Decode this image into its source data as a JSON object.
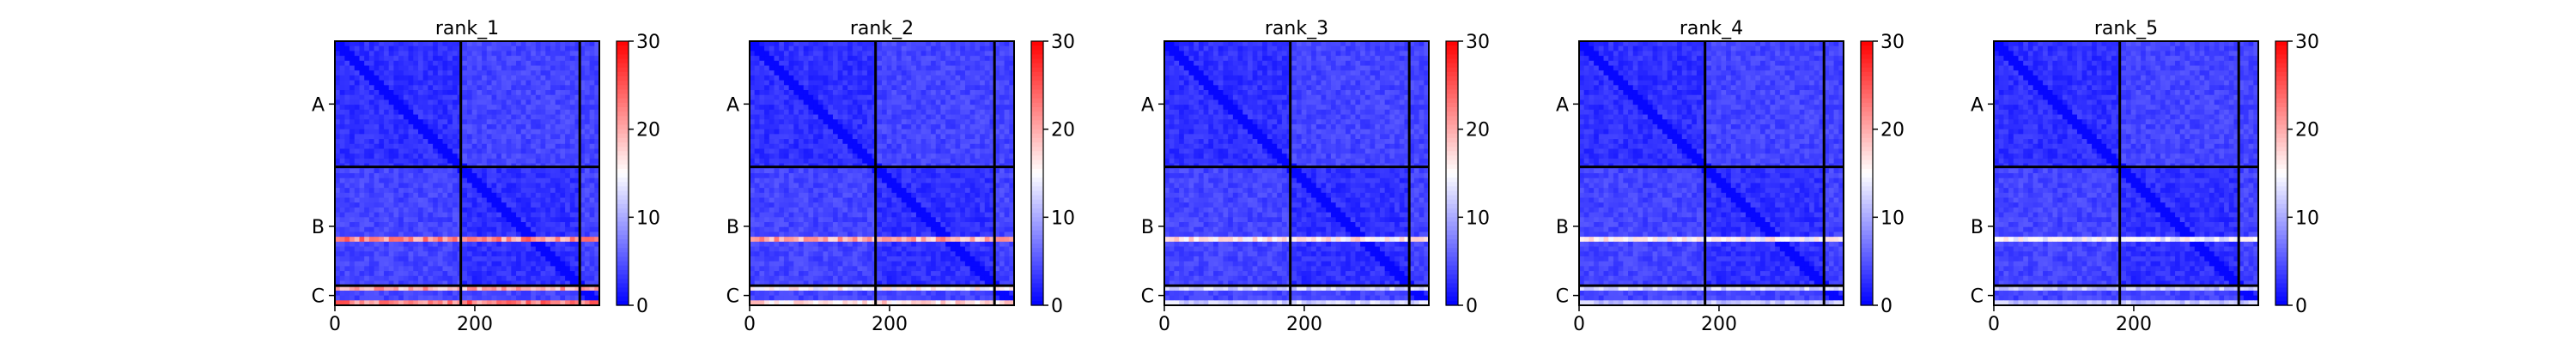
{
  "chart_data": [
    {
      "type": "heatmap",
      "title": "rank_1",
      "xticks": [
        0,
        200
      ],
      "xlim": [
        0,
        378
      ],
      "ylim": [
        0,
        378
      ],
      "chain_labels": [
        "A",
        "B",
        "C"
      ],
      "chain_boundaries": [
        180,
        350
      ],
      "colorbar": {
        "min": 0,
        "max": 30,
        "ticks": [
          0,
          10,
          20,
          30
        ],
        "colormap": [
          "#0000ff",
          "#ffffff",
          "#ff0000"
        ]
      },
      "hot_rows": [
        {
          "center": 282,
          "width": 3,
          "value": 24
        },
        {
          "center": 356,
          "width": 3,
          "value": 22
        },
        {
          "center": 372,
          "width": 3,
          "value": 25
        }
      ]
    },
    {
      "type": "heatmap",
      "title": "rank_2",
      "xticks": [
        0,
        200
      ],
      "xlim": [
        0,
        378
      ],
      "ylim": [
        0,
        378
      ],
      "chain_labels": [
        "A",
        "B",
        "C"
      ],
      "chain_boundaries": [
        180,
        350
      ],
      "colorbar": {
        "min": 0,
        "max": 30,
        "ticks": [
          0,
          10,
          20,
          30
        ],
        "colormap": [
          "#0000ff",
          "#ffffff",
          "#ff0000"
        ]
      },
      "hot_rows": [
        {
          "center": 282,
          "width": 3,
          "value": 22
        },
        {
          "center": 356,
          "width": 3,
          "value": 17
        },
        {
          "center": 372,
          "width": 3,
          "value": 19
        }
      ]
    },
    {
      "type": "heatmap",
      "title": "rank_3",
      "xticks": [
        0,
        200
      ],
      "xlim": [
        0,
        378
      ],
      "ylim": [
        0,
        378
      ],
      "chain_labels": [
        "A",
        "B",
        "C"
      ],
      "chain_boundaries": [
        180,
        350
      ],
      "colorbar": {
        "min": 0,
        "max": 30,
        "ticks": [
          0,
          10,
          20,
          30
        ],
        "colormap": [
          "#0000ff",
          "#ffffff",
          "#ff0000"
        ]
      },
      "hot_rows": [
        {
          "center": 282,
          "width": 3,
          "value": 18
        },
        {
          "center": 356,
          "width": 3,
          "value": 14
        },
        {
          "center": 372,
          "width": 3,
          "value": 14
        }
      ]
    },
    {
      "type": "heatmap",
      "title": "rank_4",
      "xticks": [
        0,
        200
      ],
      "xlim": [
        0,
        378
      ],
      "ylim": [
        0,
        378
      ],
      "chain_labels": [
        "A",
        "B",
        "C"
      ],
      "chain_boundaries": [
        180,
        350
      ],
      "colorbar": {
        "min": 0,
        "max": 30,
        "ticks": [
          0,
          10,
          20,
          30
        ],
        "colormap": [
          "#0000ff",
          "#ffffff",
          "#ff0000"
        ]
      },
      "hot_rows": [
        {
          "center": 282,
          "width": 3,
          "value": 17
        },
        {
          "center": 356,
          "width": 3,
          "value": 14
        },
        {
          "center": 372,
          "width": 3,
          "value": 13
        }
      ]
    },
    {
      "type": "heatmap",
      "title": "rank_5",
      "xticks": [
        0,
        200
      ],
      "xlim": [
        0,
        378
      ],
      "ylim": [
        0,
        378
      ],
      "chain_labels": [
        "A",
        "B",
        "C"
      ],
      "chain_boundaries": [
        180,
        350
      ],
      "colorbar": {
        "min": 0,
        "max": 30,
        "ticks": [
          0,
          10,
          20,
          30
        ],
        "colormap": [
          "#0000ff",
          "#ffffff",
          "#ff0000"
        ]
      },
      "hot_rows": [
        {
          "center": 282,
          "width": 3,
          "value": 16
        },
        {
          "center": 356,
          "width": 3,
          "value": 13
        },
        {
          "center": 372,
          "width": 3,
          "value": 13
        }
      ]
    }
  ]
}
